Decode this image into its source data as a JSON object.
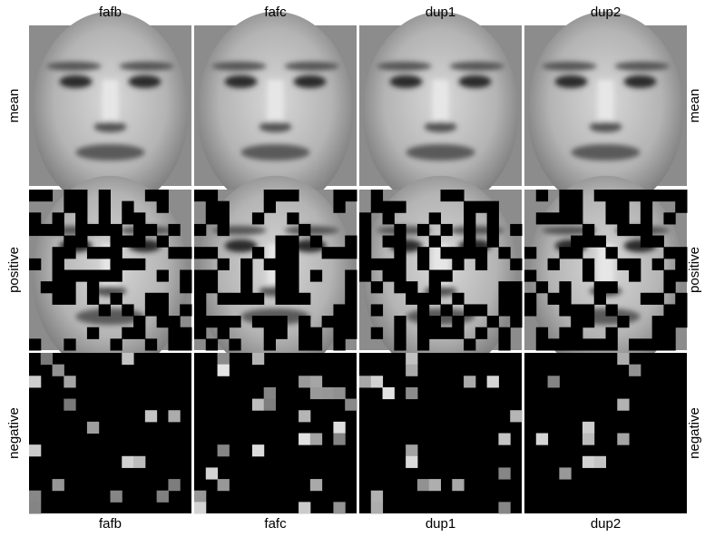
{
  "columns_top": [
    "fafb",
    "fafc",
    "dup1",
    "dup2"
  ],
  "columns_bottom": [
    "fafb",
    "fafc",
    "dup1",
    "dup2"
  ],
  "rows_left": [
    "mean",
    "positive",
    "negative"
  ],
  "rows_right": [
    "mean",
    "positive",
    "negative"
  ]
}
